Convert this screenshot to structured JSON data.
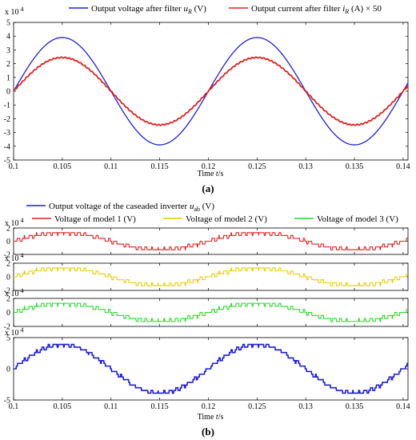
{
  "chart_data": [
    {
      "panel": "a",
      "type": "line",
      "caption": "(a)",
      "xlabel": "Time t/s",
      "ylabel": "",
      "y_exponent_label": "x 10",
      "y_exponent_power": "4",
      "xlim": [
        0.1,
        0.1405
      ],
      "ylim": [
        -5,
        5
      ],
      "xticks": [
        "0.1",
        "0.105",
        "0.11",
        "0.115",
        "0.12",
        "0.125",
        "0.13",
        "0.135",
        "0.14"
      ],
      "xtick_values": [
        0.1,
        0.105,
        0.11,
        0.115,
        0.12,
        0.125,
        0.13,
        0.135,
        0.14
      ],
      "yticks": [
        "5",
        "4",
        "3",
        "2",
        "1",
        "0",
        "-1",
        "-2",
        "-3",
        "-4",
        "-5"
      ],
      "ytick_values": [
        5,
        4,
        3,
        2,
        1,
        0,
        -1,
        -2,
        -3,
        -4,
        -5
      ],
      "grid": false,
      "legend_position": "top",
      "series": [
        {
          "name": "Output voltage after filter  u_R (V)",
          "color": "#1f1fd6",
          "waveform": "sine",
          "amplitude": 3.9,
          "frequency_hz": 50,
          "phase_at_0_1": 0,
          "x_start": 0.1,
          "x_end": 0.1405
        },
        {
          "name": "Output current after filter  i_R (A) × 50",
          "color": "#e02020",
          "waveform": "sine",
          "amplitude": 2.45,
          "frequency_hz": 50,
          "phase_at_0_1": 0,
          "x_start": 0.1,
          "x_end": 0.1405
        }
      ]
    },
    {
      "panel": "b",
      "type": "line",
      "caption": "(b)",
      "xlabel": "Time t/s",
      "xlim": [
        0.1,
        0.1405
      ],
      "xticks": [
        "0.1",
        "0.105",
        "0.11",
        "0.115",
        "0.12",
        "0.125",
        "0.13",
        "0.135",
        "0.14"
      ],
      "xtick_values": [
        0.1,
        0.105,
        0.11,
        0.115,
        0.12,
        0.125,
        0.13,
        0.135,
        0.14
      ],
      "grid": false,
      "legend_position": "top",
      "legend": [
        {
          "name": "Output voltage of the caseaded inverter  u_ab (V)",
          "color": "#1f1fd6"
        },
        {
          "name": "Voltage of model 1 (V)",
          "color": "#e02020"
        },
        {
          "name": "Voltage of model 2 (V)",
          "color": "#e8cc00"
        },
        {
          "name": "Voltage of model 3 (V)",
          "color": "#22dd22"
        }
      ],
      "subplots": [
        {
          "name": "Voltage of model 1 (V)",
          "color": "#e02020",
          "waveform": "staircase",
          "amplitude": 1.3,
          "levels": 3,
          "ylim": [
            -2,
            2
          ],
          "yticks": [
            "2",
            "0",
            "-2"
          ],
          "ytick_values": [
            2,
            0,
            -2
          ],
          "y_exponent_label": "x 10",
          "y_exponent_power": "4"
        },
        {
          "name": "Voltage of model 2 (V)",
          "color": "#e8cc00",
          "waveform": "staircase",
          "amplitude": 1.3,
          "levels": 3,
          "ylim": [
            -2,
            2
          ],
          "yticks": [
            "2",
            "0",
            "-2"
          ],
          "ytick_values": [
            2,
            0,
            -2
          ],
          "y_exponent_label": "x 10",
          "y_exponent_power": "4"
        },
        {
          "name": "Voltage of model 3 (V)",
          "color": "#22dd22",
          "waveform": "staircase",
          "amplitude": 1.3,
          "levels": 3,
          "ylim": [
            -2,
            2
          ],
          "yticks": [
            "2",
            "0",
            "-2"
          ],
          "ytick_values": [
            2,
            0,
            -2
          ],
          "y_exponent_label": "x 10",
          "y_exponent_power": "4"
        },
        {
          "name": "Output voltage of the caseaded inverter  u_ab (V)",
          "color": "#1f1fd6",
          "waveform": "staircase",
          "amplitude": 3.9,
          "levels": 9,
          "ylim": [
            -5,
            5
          ],
          "yticks": [
            "5",
            "0",
            "-5"
          ],
          "ytick_values": [
            5,
            0,
            -5
          ],
          "y_exponent_label": "x 10",
          "y_exponent_power": "4"
        }
      ]
    }
  ]
}
